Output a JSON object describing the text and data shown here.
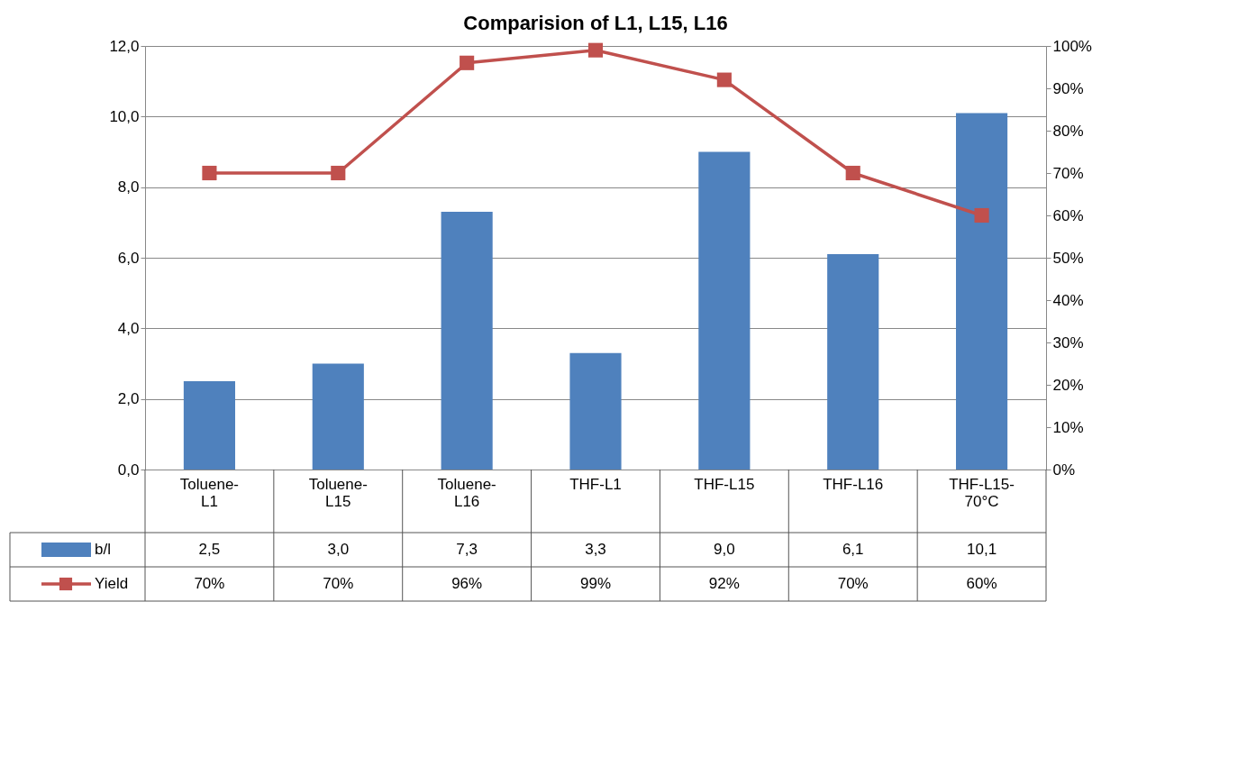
{
  "chart_data": {
    "type": "bar",
    "title": "Comparision of L1, L15, L16",
    "categories": [
      "Toluene-L1",
      "Toluene-L15",
      "Toluene-L16",
      "THF-L1",
      "THF-L15",
      "THF-L16",
      "THF-L15-70°C"
    ],
    "series": [
      {
        "name": "b/l",
        "color": "#4f81bd",
        "values": [
          2.5,
          3.0,
          7.3,
          3.3,
          9.0,
          6.1,
          10.1
        ],
        "value_labels": [
          "2,5",
          "3,0",
          "7,3",
          "3,3",
          "9,0",
          "6,1",
          "10,1"
        ]
      },
      {
        "name": "Yield",
        "type": "line",
        "axis": "y2",
        "color": "#c0504d",
        "values": [
          70,
          70,
          96,
          99,
          92,
          70,
          60
        ],
        "value_labels": [
          "70%",
          "70%",
          "96%",
          "99%",
          "92%",
          "70%",
          "60%"
        ]
      }
    ],
    "ylim": [
      0,
      12
    ],
    "yticks": [
      {
        "value": 0,
        "label": "0,0"
      },
      {
        "value": 2,
        "label": "2,0"
      },
      {
        "value": 4,
        "label": "4,0"
      },
      {
        "value": 6,
        "label": "6,0"
      },
      {
        "value": 8,
        "label": "8,0"
      },
      {
        "value": 10,
        "label": "10,0"
      },
      {
        "value": 12,
        "label": "12,0"
      }
    ],
    "y2lim": [
      0,
      100
    ],
    "y2ticks": [
      {
        "value": 0,
        "label": "0%"
      },
      {
        "value": 10,
        "label": "10%"
      },
      {
        "value": 20,
        "label": "20%"
      },
      {
        "value": 30,
        "label": "30%"
      },
      {
        "value": 40,
        "label": "40%"
      },
      {
        "value": 50,
        "label": "50%"
      },
      {
        "value": 60,
        "label": "60%"
      },
      {
        "value": 70,
        "label": "70%"
      },
      {
        "value": 80,
        "label": "80%"
      },
      {
        "value": 90,
        "label": "90%"
      },
      {
        "value": 100,
        "label": "100%"
      }
    ],
    "grid": "y",
    "legend": "bottom",
    "marker": "square",
    "line_style": "solid"
  }
}
